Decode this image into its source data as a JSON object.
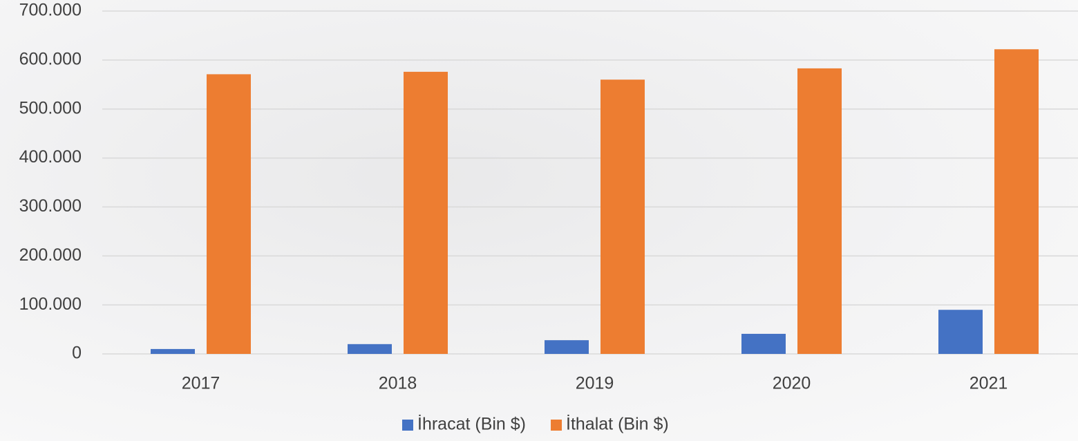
{
  "chart_data": {
    "type": "bar",
    "categories": [
      "2017",
      "2018",
      "2019",
      "2020",
      "2021"
    ],
    "series": [
      {
        "name": "İhracat (Bin $)",
        "color": "#4472c4",
        "values": [
          10000,
          20000,
          28000,
          41000,
          90000
        ]
      },
      {
        "name": "İthalat (Bin $)",
        "color": "#ed7d31",
        "values": [
          571000,
          576000,
          560000,
          583000,
          622000
        ]
      }
    ],
    "ylim": [
      0,
      700000
    ],
    "yticks": [
      0,
      {
        "value": 100000,
        "label": "100.000"
      },
      {
        "value": 200000,
        "label": "200.000"
      },
      {
        "value": 300000,
        "label": "300.000"
      },
      {
        "value": 400000,
        "label": "400.000"
      },
      {
        "value": 500000,
        "label": "500.000"
      },
      {
        "value": 600000,
        "label": "600.000"
      },
      {
        "value": 700000,
        "label": "700.000"
      }
    ],
    "grid": true,
    "legend": "bottom"
  }
}
